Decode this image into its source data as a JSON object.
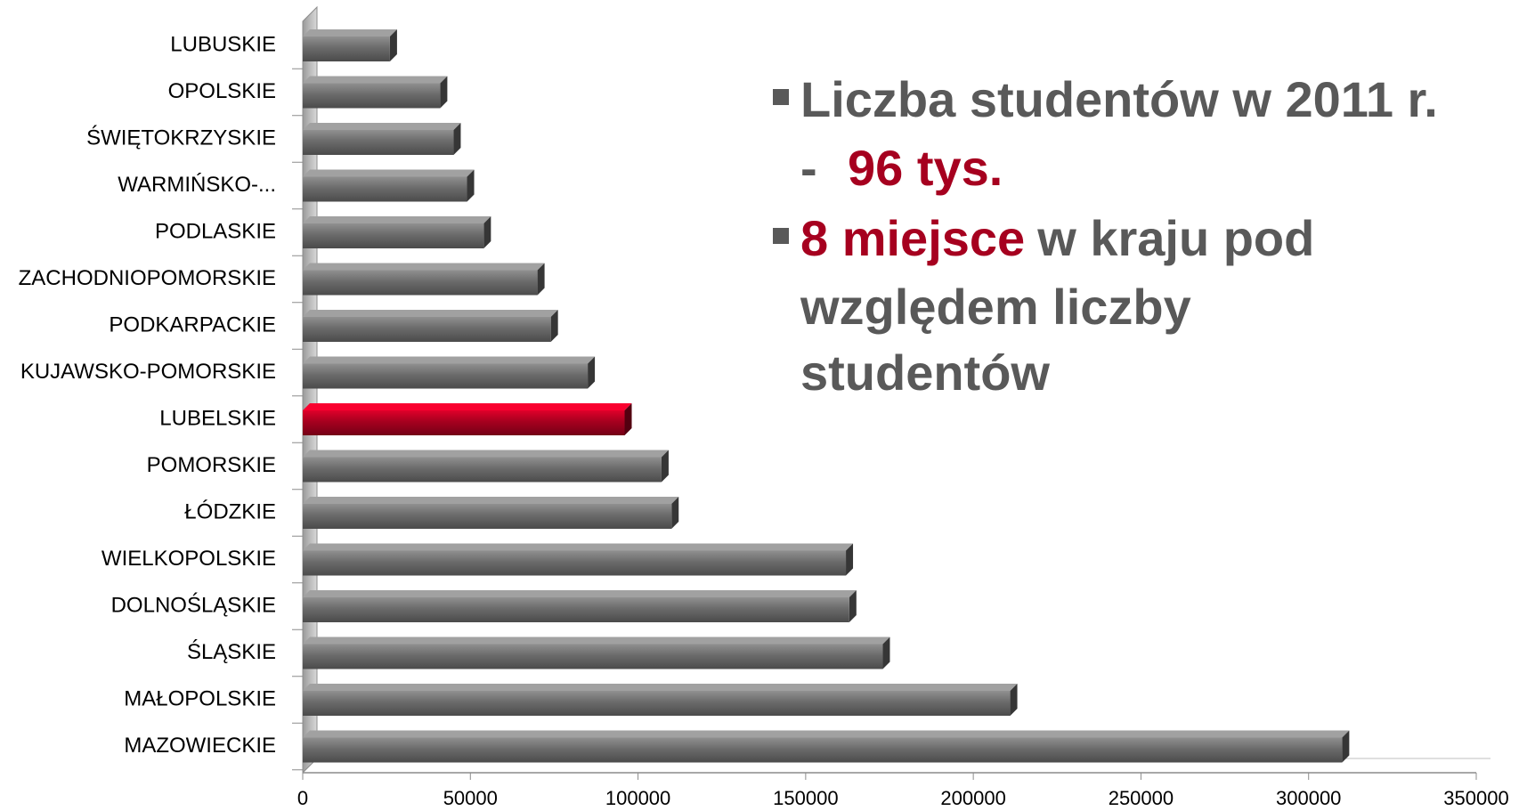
{
  "chart_data": {
    "type": "bar",
    "orientation": "horizontal",
    "categories": [
      "LUBUSKIE",
      "OPOLSKIE",
      "ŚWIĘTOKRZYSKIE",
      "WARMIŃSKO-...",
      "PODLASKIE",
      "ZACHODNIOPOMORSKIE",
      "PODKARPACKIE",
      "KUJAWSKO-POMORSKIE",
      "LUBELSKIE",
      "POMORSKIE",
      "ŁÓDZKIE",
      "WIELKOPOLSKIE",
      "DOLNOŚLĄSKIE",
      "ŚLĄSKIE",
      "MAŁOPOLSKIE",
      "MAZOWIECKIE"
    ],
    "values": [
      26000,
      41000,
      45000,
      49000,
      54000,
      70000,
      74000,
      85000,
      96000,
      107000,
      110000,
      162000,
      163000,
      173000,
      211000,
      310000
    ],
    "colors": [
      "#6b6b6b",
      "#6b6b6b",
      "#6b6b6b",
      "#6b6b6b",
      "#6b6b6b",
      "#6b6b6b",
      "#6b6b6b",
      "#6b6b6b",
      "#a6001f",
      "#6b6b6b",
      "#6b6b6b",
      "#6b6b6b",
      "#6b6b6b",
      "#6b6b6b",
      "#6b6b6b",
      "#6b6b6b"
    ],
    "xlim": [
      0,
      350000
    ],
    "xticks": [
      0,
      50000,
      100000,
      150000,
      200000,
      250000,
      300000,
      350000
    ],
    "annotations": {
      "line1": "Liczba studentów w 2011 r.",
      "dash": "-",
      "value": "96 tys.",
      "highlight": "8 miejsce",
      "line2": "w kraju pod",
      "line3": "względem liczby",
      "line4": "studentów"
    }
  }
}
